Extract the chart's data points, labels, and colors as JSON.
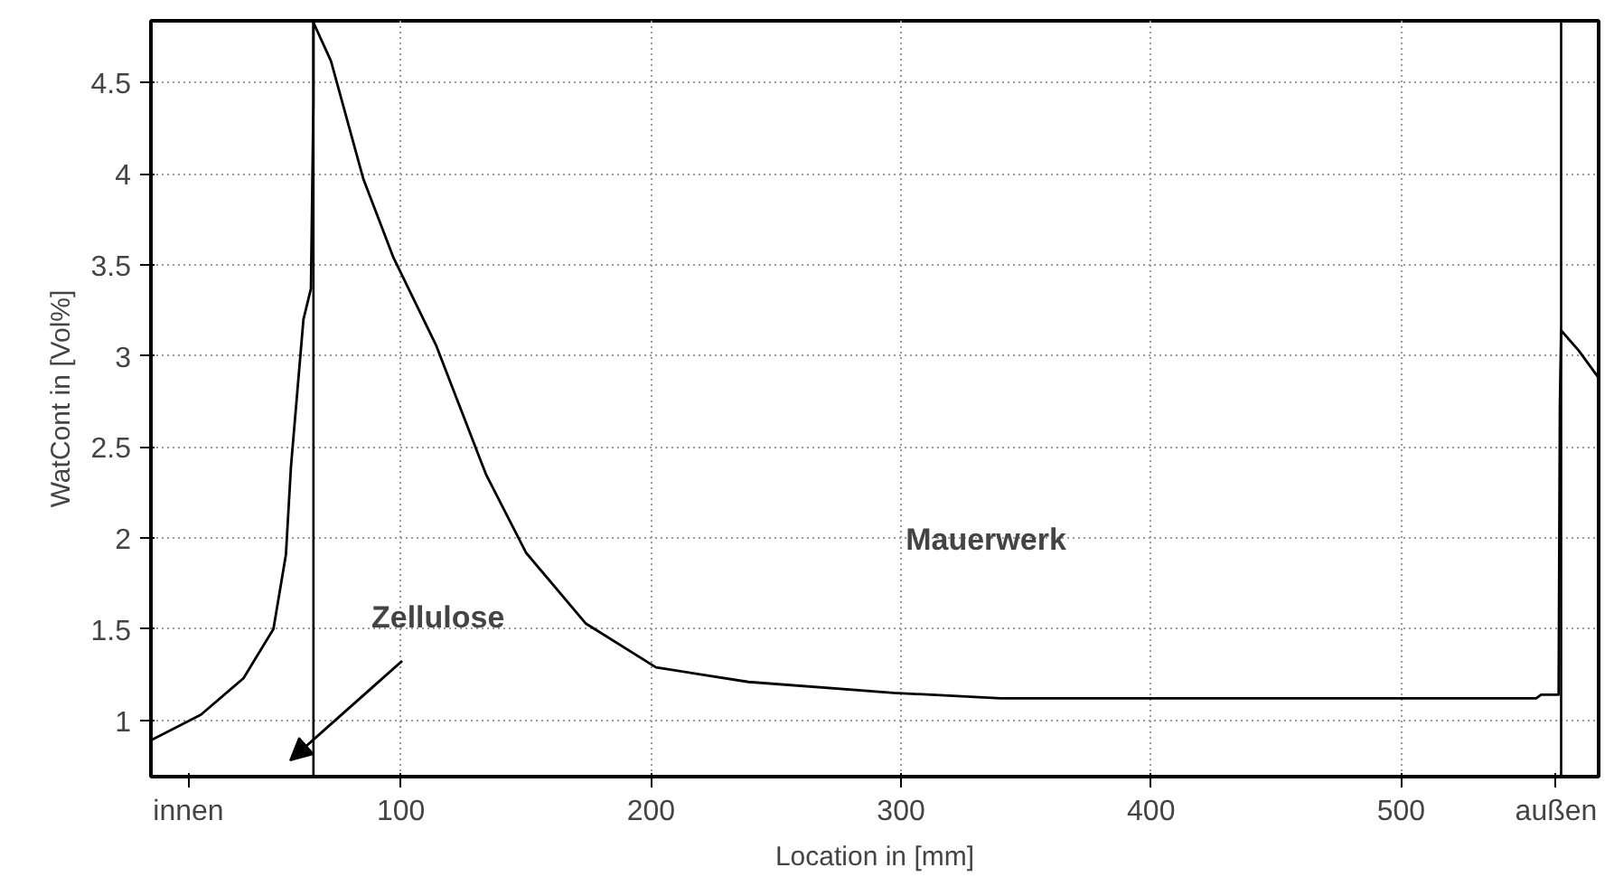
{
  "chart_data": {
    "type": "line",
    "xlabel": "Location in [mm]",
    "ylabel": "WatCont in [Vol%]",
    "x": [
      0,
      20,
      37,
      49,
      54,
      56,
      61,
      64,
      65,
      65,
      72,
      85,
      97,
      114,
      134,
      150,
      174,
      202,
      239,
      297,
      340,
      554,
      556,
      563,
      563.5,
      564,
      571,
      579
    ],
    "series": [
      {
        "color": "#000000",
        "values": [
          0.89,
          1.03,
          1.23,
          1.5,
          1.91,
          2.39,
          3.2,
          3.37,
          4.4,
          4.83,
          4.62,
          3.97,
          3.54,
          3.06,
          2.35,
          1.92,
          1.53,
          1.29,
          1.21,
          1.15,
          1.12,
          1.12,
          1.14,
          1.14,
          2.73,
          3.14,
          3.03,
          2.88
        ]
      }
    ],
    "xlim": [
      0,
      579
    ],
    "ylim": [
      0.69,
      4.84
    ],
    "xticks": [
      {
        "value": 15,
        "label": "innen"
      },
      100,
      200,
      300,
      400,
      500,
      {
        "value": 562,
        "label": "außen"
      }
    ],
    "yticks": [
      1,
      1.5,
      2,
      2.5,
      3,
      3.5,
      4,
      4.5
    ],
    "grid": true,
    "marker": "none",
    "line_style": "solid",
    "ref_lines": [
      {
        "axis": "x",
        "value": 65,
        "color": "#000000"
      },
      {
        "axis": "x",
        "value": 564,
        "color": "#000000"
      }
    ],
    "annotations": [
      "Zellulose",
      "Mauerwerk"
    ]
  }
}
